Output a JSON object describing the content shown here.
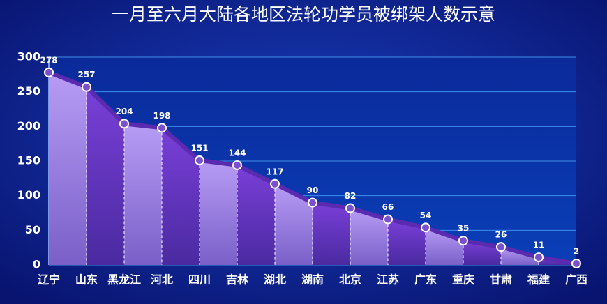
{
  "chart_data": {
    "type": "area-line",
    "title": "一月至六月大陆各地区法轮功学员被绑架人数示意",
    "categories": [
      "辽宁",
      "山东",
      "黑龙江",
      "河北",
      "四川",
      "吉林",
      "湖北",
      "湖南",
      "北京",
      "江苏",
      "广东",
      "重庆",
      "甘肃",
      "福建",
      "广西"
    ],
    "values": [
      278,
      257,
      204,
      198,
      151,
      144,
      117,
      90,
      82,
      66,
      54,
      35,
      26,
      11,
      2
    ],
    "color": "#8a5ce0",
    "ylim": [
      0,
      300
    ],
    "yticks": [
      0,
      50,
      100,
      150,
      200,
      250,
      300
    ],
    "grid": true
  }
}
